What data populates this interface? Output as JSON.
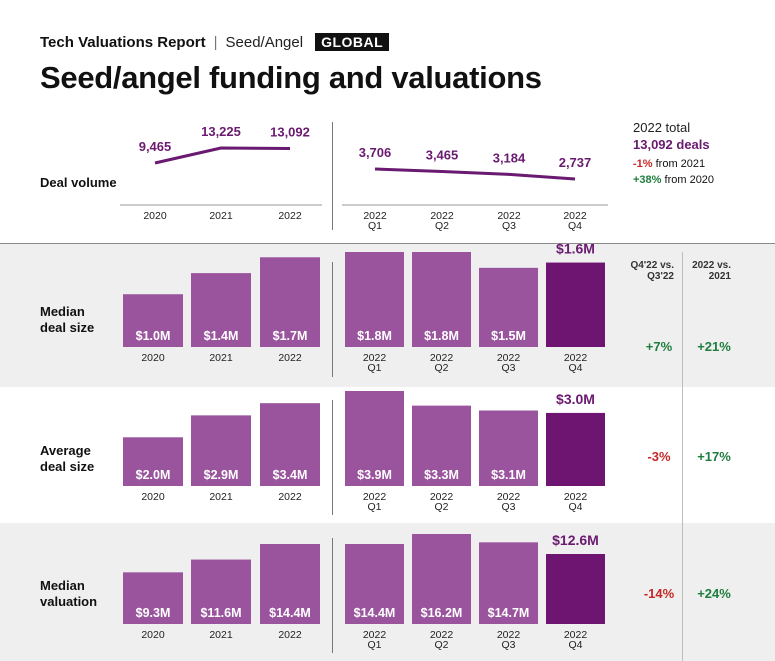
{
  "header": {
    "report": "Tech Valuations Report",
    "separator": "|",
    "section": "Seed/Angel",
    "badge": "GLOBAL"
  },
  "title": "Seed/angel funding and valuations",
  "totals": {
    "label": "2022 total",
    "value": "13,092 deals",
    "change_2021_pct": "-1%",
    "change_2021_text": "from 2021",
    "change_2020_pct": "+38%",
    "change_2020_text": "from 2020"
  },
  "columns": {
    "qoq_header": "Q4'22 vs. Q3'22",
    "yoy_header": "2022 vs. 2021"
  },
  "colors": {
    "series": "#9a549e",
    "highlight": "#6e1572",
    "line": "#6a1a70",
    "value_text": "#6a1a70",
    "positive": "#1e7e3e",
    "negative": "#c62828"
  },
  "rows": {
    "deal_volume": {
      "label": "Deal volume"
    },
    "median_deal": {
      "label": "Median deal size",
      "qoq": "+7%",
      "yoy": "+21%"
    },
    "average_deal": {
      "label": "Average deal size",
      "qoq": "-3%",
      "yoy": "+17%"
    },
    "median_valuation": {
      "label": "Median valuation",
      "qoq": "-14%",
      "yoy": "+24%"
    }
  },
  "chart_data": [
    {
      "type": "line",
      "name": "deal-volume-annual",
      "categories": [
        "2020",
        "2021",
        "2022"
      ],
      "values": [
        9465,
        13225,
        13092
      ],
      "labels": [
        "9,465",
        "13,225",
        "13,092"
      ]
    },
    {
      "type": "line",
      "name": "deal-volume-quarterly",
      "categories": [
        "2022 Q1",
        "2022 Q2",
        "2022 Q3",
        "2022 Q4"
      ],
      "values": [
        3706,
        3465,
        3184,
        2737
      ],
      "labels": [
        "3,706",
        "3,465",
        "3,184",
        "2,737"
      ]
    },
    {
      "type": "bar",
      "name": "median-deal-size",
      "unit": "$M",
      "annual": {
        "categories": [
          "2020",
          "2021",
          "2022"
        ],
        "values": [
          1.0,
          1.4,
          1.7
        ],
        "labels": [
          "$1.0M",
          "$1.4M",
          "$1.7M"
        ]
      },
      "quarterly": {
        "categories": [
          "2022 Q1",
          "2022 Q2",
          "2022 Q3",
          "2022 Q4"
        ],
        "values": [
          1.8,
          1.8,
          1.5,
          1.6
        ],
        "labels": [
          "$1.8M",
          "$1.8M",
          "$1.5M",
          "$1.6M"
        ]
      }
    },
    {
      "type": "bar",
      "name": "average-deal-size",
      "unit": "$M",
      "annual": {
        "categories": [
          "2020",
          "2021",
          "2022"
        ],
        "values": [
          2.0,
          2.9,
          3.4
        ],
        "labels": [
          "$2.0M",
          "$2.9M",
          "$3.4M"
        ]
      },
      "quarterly": {
        "categories": [
          "2022 Q1",
          "2022 Q2",
          "2022 Q3",
          "2022 Q4"
        ],
        "values": [
          3.9,
          3.3,
          3.1,
          3.0
        ],
        "labels": [
          "$3.9M",
          "$3.3M",
          "$3.1M",
          "$3.0M"
        ]
      }
    },
    {
      "type": "bar",
      "name": "median-valuation",
      "unit": "$M",
      "annual": {
        "categories": [
          "2020",
          "2021",
          "2022"
        ],
        "values": [
          9.3,
          11.6,
          14.4
        ],
        "labels": [
          "$9.3M",
          "$11.6M",
          "$14.4M"
        ]
      },
      "quarterly": {
        "categories": [
          "2022 Q1",
          "2022 Q2",
          "2022 Q3",
          "2022 Q4"
        ],
        "values": [
          14.4,
          16.2,
          14.7,
          12.6
        ],
        "labels": [
          "$14.4M",
          "$16.2M",
          "$14.7M",
          "$12.6M"
        ]
      }
    }
  ]
}
